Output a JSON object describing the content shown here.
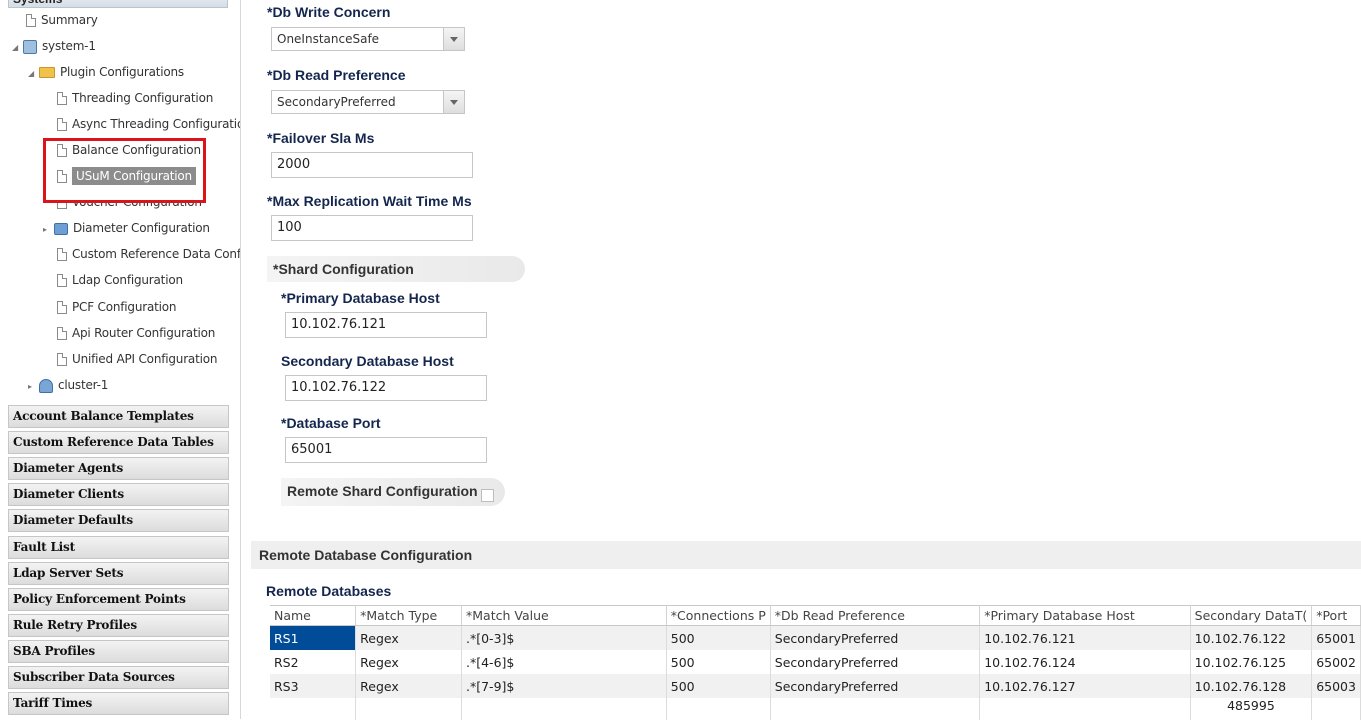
{
  "sidebar": {
    "top_header": "Systems",
    "tree": {
      "summary": "Summary",
      "system": "system-1",
      "plugin_configurations": "Plugin Configurations",
      "plugins": [
        "Threading Configuration",
        "Async Threading Configuration",
        "Balance Configuration",
        "USuM Configuration",
        "Voucher Configuration",
        "Diameter Configuration",
        "Custom Reference Data Configu",
        "Ldap Configuration",
        "PCF Configuration",
        "Api Router Configuration",
        "Unified API Configuration"
      ],
      "cluster": "cluster-1"
    },
    "groups": [
      "Account Balance Templates",
      "Custom Reference Data Tables",
      "Diameter Agents",
      "Diameter Clients",
      "Diameter Defaults",
      "Fault List",
      "Ldap Server Sets",
      "Policy Enforcement Points",
      "Rule Retry Profiles",
      "SBA Profiles",
      "Subscriber Data Sources",
      "Tariff Times"
    ]
  },
  "form": {
    "db_write_concern": {
      "label": "*Db Write Concern",
      "value": "OneInstanceSafe"
    },
    "db_read_preference": {
      "label": "*Db Read Preference",
      "value": "SecondaryPreferred"
    },
    "failover_sla_ms": {
      "label": "*Failover Sla Ms",
      "value": "2000"
    },
    "max_replication_wait": {
      "label": "*Max Replication Wait Time Ms",
      "value": "100"
    },
    "shard_configuration": {
      "title": "*Shard Configuration",
      "primary_host": {
        "label": "*Primary Database Host",
        "value": "10.102.76.121"
      },
      "secondary_host": {
        "label": "Secondary Database Host",
        "value": "10.102.76.122"
      },
      "database_port": {
        "label": "*Database Port",
        "value": "65001"
      },
      "remote_shard": {
        "label": "Remote Shard Configuration"
      }
    }
  },
  "remote_db": {
    "section_title": "Remote Database Configuration",
    "table_title": "Remote Databases",
    "columns": [
      "Name",
      "*Match Type",
      "*Match Value",
      "*Connections P",
      "*Db Read Preference",
      "*Primary Database Host",
      "Secondary DataT(",
      "*Port"
    ],
    "rows": [
      [
        "RS1",
        "Regex",
        ".*[0-3]$",
        "500",
        "SecondaryPreferred",
        "10.102.76.121",
        "10.102.76.122",
        "65001"
      ],
      [
        "RS2",
        "Regex",
        ".*[4-6]$",
        "500",
        "SecondaryPreferred",
        "10.102.76.124",
        "10.102.76.125",
        "65002"
      ],
      [
        "RS3",
        "Regex",
        ".*[7-9]$",
        "500",
        "SecondaryPreferred",
        "10.102.76.127",
        "10.102.76.128",
        "65003"
      ]
    ],
    "overflow_value": "485995"
  },
  "colors": {
    "selected_cell": "#004c99",
    "highlight_box": "#d9141b",
    "label_navy": "#14264e"
  }
}
